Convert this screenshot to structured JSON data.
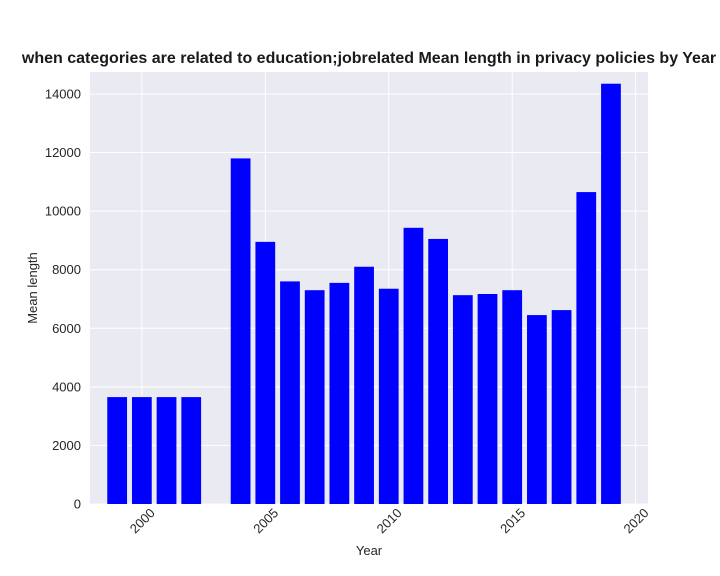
{
  "chart_data": {
    "type": "bar",
    "title": "when categories are related to education;jobrelated Mean length in privacy policies by Year",
    "xlabel": "Year",
    "ylabel": "Mean length",
    "x": [
      1999,
      2000,
      2001,
      2002,
      2004,
      2005,
      2006,
      2007,
      2008,
      2009,
      2010,
      2011,
      2012,
      2013,
      2014,
      2015,
      2016,
      2017,
      2018,
      2019
    ],
    "values": [
      3650,
      3650,
      3650,
      3650,
      11800,
      8950,
      7600,
      7300,
      7550,
      8100,
      7350,
      9430,
      9050,
      7130,
      7170,
      7300,
      6450,
      6620,
      10650,
      14350
    ],
    "xlim": [
      1997.9,
      2020.5
    ],
    "ylim": [
      0,
      14750
    ],
    "xticks": [
      2000,
      2005,
      2010,
      2015,
      2020
    ],
    "yticks": [
      0,
      2000,
      4000,
      6000,
      8000,
      10000,
      12000,
      14000
    ],
    "bar_color": "#0000ff",
    "background_color": "#eaeaf2",
    "grid_color": "#ffffff",
    "grid": true
  }
}
